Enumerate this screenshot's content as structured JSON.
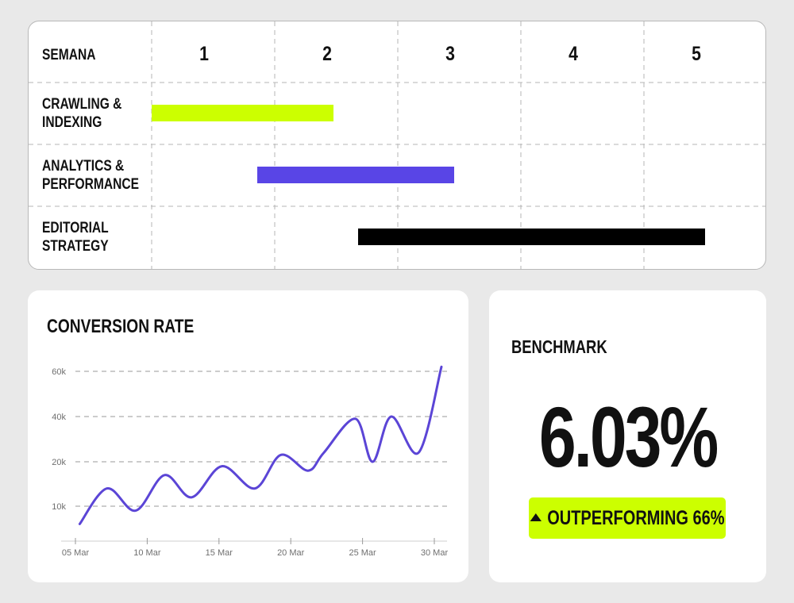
{
  "gantt": {
    "header_label": "SEMANA",
    "weeks": [
      "1",
      "2",
      "3",
      "4",
      "5"
    ],
    "tasks": [
      {
        "label": "CRAWLING &\nINDEXING",
        "start": 1.0,
        "end": 2.48,
        "color": "#ccff00"
      },
      {
        "label": "ANALYTICS &\nPERFORMANCE",
        "start": 1.86,
        "end": 3.46,
        "color": "#5945e6"
      },
      {
        "label": "EDITORIAL\nSTRATEGY",
        "start": 2.68,
        "end": 5.5,
        "color": "#000000"
      }
    ]
  },
  "conversion": {
    "title": "CONVERSION RATE"
  },
  "benchmark": {
    "title": "BENCHMARK",
    "value": "6.03%",
    "badge_text": "OUTPERFORMING 66%",
    "badge_icon": "triangle-up-icon",
    "accent_color": "#ccff00"
  },
  "chart_data": {
    "type": "line",
    "title": "CONVERSION RATE",
    "xlabel": "",
    "ylabel": "",
    "x_tick_labels": [
      "05 Mar",
      "10 Mar",
      "15 Mar",
      "20 Mar",
      "25 Mar",
      "30 Mar"
    ],
    "x_tick_days": [
      5,
      10,
      15,
      20,
      25,
      30
    ],
    "y_tick_labels": [
      "10k",
      "20k",
      "40k",
      "60k"
    ],
    "y_tick_values": [
      10000,
      20000,
      40000,
      60000
    ],
    "grid": "horizontal dashed",
    "color": "#5b45d6",
    "series": [
      {
        "x": [
          5.3,
          7.2,
          9.2,
          11.2,
          13.1,
          15.2,
          17.5,
          19.3,
          21.2,
          22.3,
          24.5,
          25.7,
          27.0,
          28.9,
          30.5
        ],
        "y": [
          6000,
          14000,
          9000,
          17000,
          12000,
          19000,
          14000,
          23000,
          18000,
          24000,
          39000,
          20000,
          40000,
          24000,
          62000
        ]
      }
    ]
  }
}
